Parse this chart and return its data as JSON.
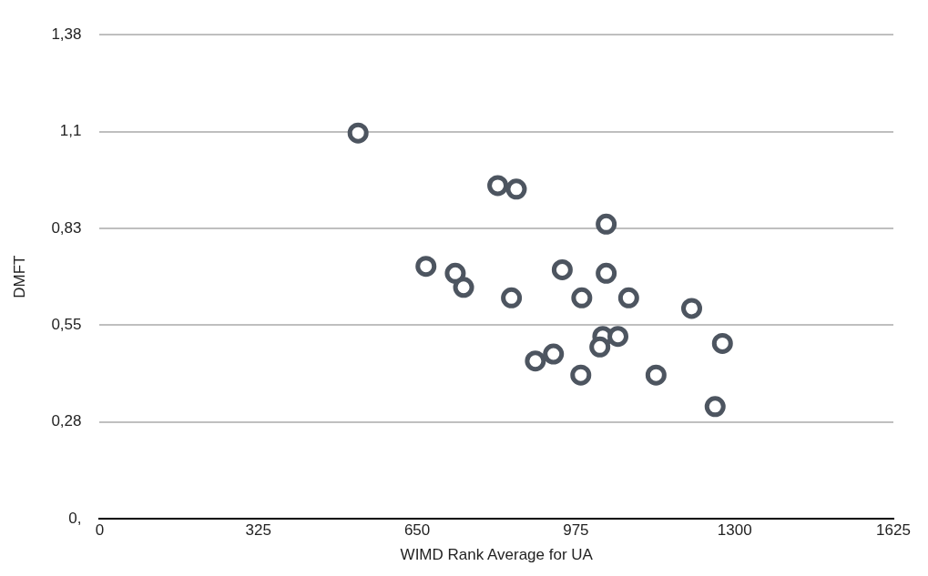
{
  "chart_data": {
    "type": "scatter",
    "xlabel": "WIMD Rank Average for UA",
    "ylabel": "DMFT",
    "xlim": [
      0,
      1625
    ],
    "xticks": [
      0,
      325,
      650,
      975,
      1300,
      1625
    ],
    "ylim": [
      0,
      1.38
    ],
    "yticks": [
      {
        "value": 0,
        "label": "0,"
      },
      {
        "value": 0.276,
        "label": "0,28"
      },
      {
        "value": 0.552,
        "label": "0,55"
      },
      {
        "value": 0.828,
        "label": "0,83"
      },
      {
        "value": 1.104,
        "label": "1,1"
      },
      {
        "value": 1.38,
        "label": "1,38"
      }
    ],
    "grid": "y",
    "marker": "circle",
    "legend": false,
    "series": [
      {
        "color": "#4d5560",
        "x": [
          529,
          668,
          728,
          745,
          815,
          853,
          843,
          892,
          929,
          947,
          985,
          987,
          1030,
          1024,
          1037,
          1037,
          1061,
          1083,
          1139,
          1212,
          1260,
          1275
        ],
        "values": [
          1.1,
          0.72,
          0.7,
          0.66,
          0.95,
          0.94,
          0.63,
          0.45,
          0.47,
          0.71,
          0.41,
          0.63,
          0.52,
          0.49,
          0.84,
          0.7,
          0.52,
          0.63,
          0.41,
          0.6,
          0.32,
          0.5
        ]
      }
    ]
  }
}
